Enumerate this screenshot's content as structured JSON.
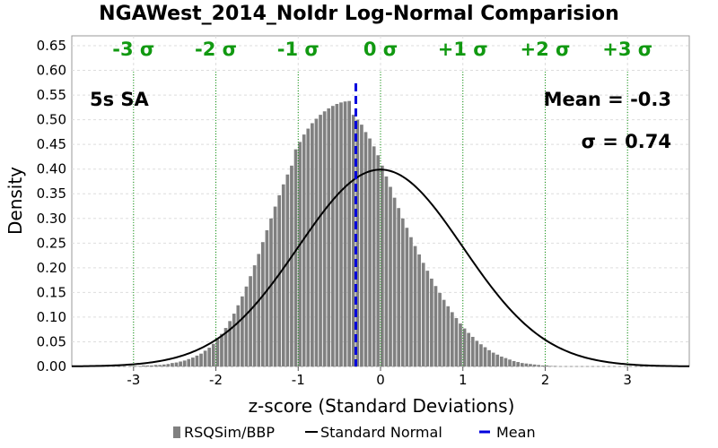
{
  "chart_data": {
    "type": "bar",
    "title": "NGAWest_2014_NoIdr Log-Normal Comparision",
    "xlabel": "z-score (Standard Deviations)",
    "ylabel": "Density",
    "xlim": [
      -3.75,
      3.75
    ],
    "ylim": [
      0,
      0.67
    ],
    "x_ticks": [
      -3,
      -2,
      -1,
      0,
      1,
      2,
      3
    ],
    "y_ticks": [
      0.0,
      0.05,
      0.1,
      0.15,
      0.2,
      0.25,
      0.3,
      0.35,
      0.4,
      0.45,
      0.5,
      0.55,
      0.6,
      0.65
    ],
    "y_tick_labels": [
      "0.00",
      "0.05",
      "0.10",
      "0.15",
      "0.20",
      "0.25",
      "0.30",
      "0.35",
      "0.40",
      "0.45",
      "0.50",
      "0.55",
      "0.60",
      "0.65"
    ],
    "x_tick_labels": [
      "-3",
      "-2",
      "-1",
      "0",
      "1",
      "2",
      "3"
    ],
    "sigma_lines": [
      {
        "x": -3,
        "label": "-3 σ"
      },
      {
        "x": -2,
        "label": "-2 σ"
      },
      {
        "x": -1,
        "label": "-1 σ"
      },
      {
        "x": 0,
        "label": "0 σ"
      },
      {
        "x": 1,
        "label": "+1 σ"
      },
      {
        "x": 2,
        "label": "+2 σ"
      },
      {
        "x": 3,
        "label": "+3 σ"
      }
    ],
    "annotations": {
      "period": "5s SA",
      "mean": "Mean = -0.3",
      "sigma": "σ = 0.74"
    },
    "mean_value": -0.3,
    "histogram": {
      "bin_start": -3.05,
      "bin_width": 0.05,
      "values": [
        0.001,
        0.001,
        0.001,
        0.002,
        0.002,
        0.002,
        0.003,
        0.003,
        0.004,
        0.005,
        0.007,
        0.008,
        0.01,
        0.012,
        0.015,
        0.018,
        0.022,
        0.026,
        0.032,
        0.038,
        0.046,
        0.055,
        0.066,
        0.078,
        0.092,
        0.107,
        0.124,
        0.142,
        0.162,
        0.183,
        0.205,
        0.228,
        0.252,
        0.276,
        0.3,
        0.324,
        0.347,
        0.369,
        0.389,
        0.407,
        0.44,
        0.455,
        0.47,
        0.482,
        0.493,
        0.502,
        0.51,
        0.517,
        0.523,
        0.528,
        0.532,
        0.535,
        0.537,
        0.538,
        0.51,
        0.5,
        0.49,
        0.475,
        0.462,
        0.446,
        0.428,
        0.407,
        0.385,
        0.364,
        0.342,
        0.321,
        0.3,
        0.281,
        0.262,
        0.244,
        0.227,
        0.21,
        0.194,
        0.178,
        0.163,
        0.149,
        0.135,
        0.122,
        0.11,
        0.098,
        0.087,
        0.077,
        0.068,
        0.06,
        0.052,
        0.045,
        0.039,
        0.033,
        0.028,
        0.024,
        0.02,
        0.017,
        0.014,
        0.011,
        0.009,
        0.007,
        0.006,
        0.005,
        0.004,
        0.003,
        0.002,
        0.002,
        0.001,
        0.001
      ]
    },
    "normal_curve": {
      "mean": 0,
      "sd": 1
    },
    "legend": [
      "RSQSim/BBP",
      "Standard Normal",
      "Mean"
    ],
    "legend_position": "bottom",
    "grid": true,
    "colors": {
      "bars": "#808080",
      "curve": "#000000",
      "mean": "#0000dd",
      "sigma": "#119911",
      "grid": "#dddddd"
    }
  }
}
